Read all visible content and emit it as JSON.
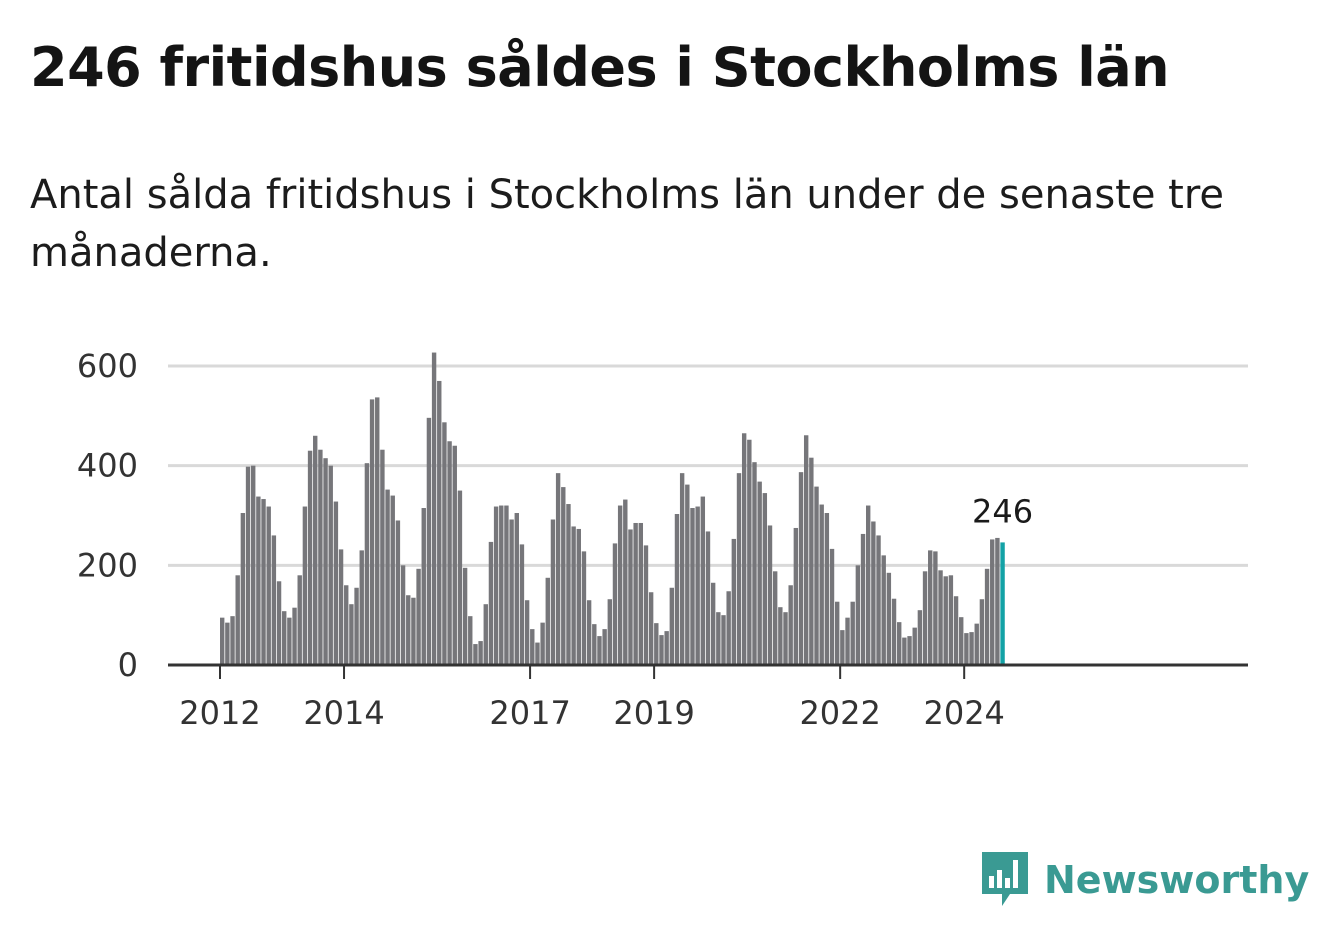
{
  "title": "246 fritidshus såldes i Stockholms län",
  "subtitle": "Antal sålda fritidshus i Stockholms län under de senaste tre månaderna.",
  "brand": {
    "name": "Newsworthy",
    "color": "#3a9a93",
    "icon": "bar-chart-logo-icon"
  },
  "colors": {
    "bar": "#76767a",
    "highlight": "#13a2a6",
    "grid": "#d9d9d9",
    "axis": "#333333"
  },
  "chart_data": {
    "type": "bar",
    "title": "246 fritidshus såldes i Stockholms län",
    "xlabel": "",
    "ylabel": "",
    "ylim": [
      0,
      640
    ],
    "yticks": [
      0,
      200,
      400,
      600
    ],
    "xticks": [
      {
        "label": "2012",
        "year": 2012
      },
      {
        "label": "2014",
        "year": 2014
      },
      {
        "label": "2017",
        "year": 2017
      },
      {
        "label": "2019",
        "year": 2019
      },
      {
        "label": "2022",
        "year": 2022
      },
      {
        "label": "2024",
        "year": 2024
      }
    ],
    "start": {
      "year": 2012,
      "month": 1
    },
    "values": [
      95,
      85,
      98,
      180,
      305,
      398,
      400,
      338,
      333,
      318,
      260,
      168,
      108,
      95,
      115,
      180,
      318,
      430,
      460,
      432,
      415,
      400,
      328,
      232,
      160,
      122,
      155,
      230,
      405,
      533,
      537,
      432,
      352,
      340,
      290,
      200,
      140,
      135,
      193,
      315,
      496,
      627,
      570,
      487,
      449,
      440,
      350,
      195,
      98,
      42,
      48,
      122,
      247,
      318,
      320,
      320,
      292,
      305,
      242,
      130,
      72,
      45,
      85,
      175,
      292,
      385,
      357,
      323,
      278,
      273,
      228,
      130,
      82,
      58,
      72,
      132,
      244,
      320,
      332,
      272,
      285,
      285,
      240,
      146,
      84,
      60,
      68,
      155,
      303,
      385,
      362,
      315,
      318,
      338,
      268,
      165,
      106,
      100,
      148,
      253,
      385,
      465,
      452,
      407,
      368,
      345,
      280,
      188,
      116,
      106,
      160,
      275,
      387,
      461,
      416,
      358,
      322,
      305,
      233,
      127,
      70,
      95,
      127,
      200,
      263,
      320,
      288,
      260,
      220,
      185,
      133,
      86,
      55,
      58,
      75,
      110,
      188,
      230,
      228,
      190,
      178,
      180,
      138,
      96,
      64,
      66,
      83,
      132,
      193,
      252,
      255,
      246
    ],
    "highlight": {
      "label": "246",
      "value": 246,
      "index": 151
    }
  }
}
